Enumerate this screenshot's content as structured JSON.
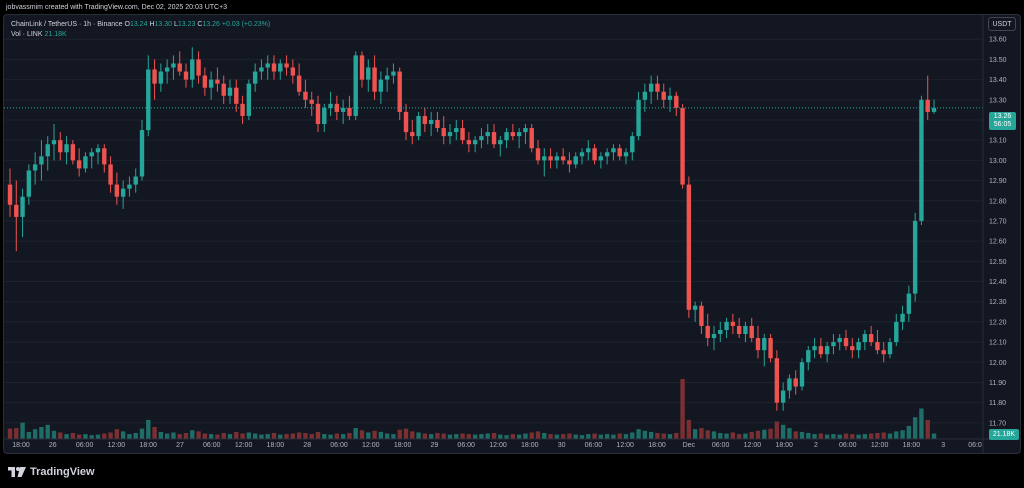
{
  "header": {
    "text": "jobvassmim created with TradingView.com, Dec 02, 2025 20:03 UTC+3"
  },
  "legend": {
    "symbol": "ChainLink / TetherUS · 1h · Binance",
    "open_label": "O",
    "open": "13.24",
    "high_label": "H",
    "high": "13.30",
    "low_label": "L",
    "low": "13.23",
    "close_label": "C",
    "close": "13.26",
    "change": "+0.03 (+0.23%)",
    "vol_label": "Vol · LINK",
    "vol_value": "21.18K"
  },
  "currency_button": "USDT",
  "last_price": {
    "price": "13.26",
    "countdown": "56:05"
  },
  "volume_readout": "21.18K",
  "footer": {
    "brand": "TradingView"
  },
  "colors": {
    "up": "#26a69a",
    "down": "#ef5350",
    "vol_up": "#1e6e67",
    "vol_down": "#7a3033",
    "grid": "#1e222d",
    "background": "#131722"
  },
  "chart_data": {
    "type": "candlestick",
    "symbol": "LINK/USDT",
    "timeframe": "1h",
    "ylim": [
      11.62,
      13.72
    ],
    "price_ticks": [
      "13.60",
      "13.50",
      "13.40",
      "13.30",
      "13.20",
      "13.10",
      "13.00",
      "12.90",
      "12.80",
      "12.70",
      "12.60",
      "12.50",
      "12.40",
      "12.30",
      "12.20",
      "12.10",
      "12.00",
      "11.90",
      "11.80",
      "11.70"
    ],
    "x_ticks": [
      "18:00",
      "26",
      "06:00",
      "12:00",
      "18:00",
      "27",
      "06:00",
      "12:00",
      "18:00",
      "28",
      "06:00",
      "12:00",
      "18:00",
      "29",
      "06:00",
      "12:00",
      "18:00",
      "30",
      "06:00",
      "12:00",
      "18:00",
      "Dec",
      "06:00",
      "12:00",
      "18:00",
      "2",
      "06:00",
      "12:00",
      "18:00",
      "3",
      "06:0"
    ],
    "candles": [
      {
        "o": 12.88,
        "h": 12.96,
        "l": 12.72,
        "c": 12.78,
        "v": 1.9
      },
      {
        "o": 12.78,
        "h": 12.9,
        "l": 12.55,
        "c": 12.72,
        "v": 2.0
      },
      {
        "o": 12.72,
        "h": 12.86,
        "l": 12.62,
        "c": 12.82,
        "v": 3.0
      },
      {
        "o": 12.82,
        "h": 12.98,
        "l": 12.78,
        "c": 12.95,
        "v": 1.3
      },
      {
        "o": 12.95,
        "h": 13.04,
        "l": 12.88,
        "c": 12.98,
        "v": 1.8
      },
      {
        "o": 12.98,
        "h": 13.1,
        "l": 12.9,
        "c": 13.02,
        "v": 2.2
      },
      {
        "o": 13.02,
        "h": 13.12,
        "l": 12.95,
        "c": 13.08,
        "v": 2.6
      },
      {
        "o": 13.08,
        "h": 13.18,
        "l": 13.0,
        "c": 13.1,
        "v": 1.5
      },
      {
        "o": 13.1,
        "h": 13.14,
        "l": 13.0,
        "c": 13.04,
        "v": 1.2
      },
      {
        "o": 13.04,
        "h": 13.12,
        "l": 12.98,
        "c": 13.08,
        "v": 0.9
      },
      {
        "o": 13.08,
        "h": 13.1,
        "l": 12.98,
        "c": 13.0,
        "v": 1.1
      },
      {
        "o": 13.0,
        "h": 13.06,
        "l": 12.92,
        "c": 12.96,
        "v": 0.8
      },
      {
        "o": 12.96,
        "h": 13.04,
        "l": 12.94,
        "c": 13.02,
        "v": 0.9
      },
      {
        "o": 13.02,
        "h": 13.06,
        "l": 12.96,
        "c": 13.04,
        "v": 0.7
      },
      {
        "o": 13.04,
        "h": 13.08,
        "l": 12.98,
        "c": 13.06,
        "v": 0.8
      },
      {
        "o": 13.06,
        "h": 13.08,
        "l": 12.94,
        "c": 12.98,
        "v": 1.0
      },
      {
        "o": 12.98,
        "h": 13.02,
        "l": 12.84,
        "c": 12.88,
        "v": 1.2
      },
      {
        "o": 12.88,
        "h": 12.94,
        "l": 12.78,
        "c": 12.82,
        "v": 1.8
      },
      {
        "o": 12.82,
        "h": 12.9,
        "l": 12.76,
        "c": 12.86,
        "v": 1.4
      },
      {
        "o": 12.86,
        "h": 12.92,
        "l": 12.82,
        "c": 12.88,
        "v": 0.9
      },
      {
        "o": 12.88,
        "h": 12.96,
        "l": 12.84,
        "c": 12.92,
        "v": 1.1
      },
      {
        "o": 12.92,
        "h": 13.2,
        "l": 12.9,
        "c": 13.15,
        "v": 1.9
      },
      {
        "o": 13.15,
        "h": 13.52,
        "l": 13.12,
        "c": 13.45,
        "v": 3.5
      },
      {
        "o": 13.45,
        "h": 13.5,
        "l": 13.3,
        "c": 13.38,
        "v": 2.2
      },
      {
        "o": 13.38,
        "h": 13.48,
        "l": 13.34,
        "c": 13.44,
        "v": 1.3
      },
      {
        "o": 13.44,
        "h": 13.5,
        "l": 13.38,
        "c": 13.46,
        "v": 1.0
      },
      {
        "o": 13.46,
        "h": 13.52,
        "l": 13.4,
        "c": 13.48,
        "v": 1.2
      },
      {
        "o": 13.48,
        "h": 13.54,
        "l": 13.42,
        "c": 13.44,
        "v": 0.9
      },
      {
        "o": 13.44,
        "h": 13.48,
        "l": 13.36,
        "c": 13.4,
        "v": 1.1
      },
      {
        "o": 13.4,
        "h": 13.56,
        "l": 13.36,
        "c": 13.5,
        "v": 1.6
      },
      {
        "o": 13.5,
        "h": 13.54,
        "l": 13.38,
        "c": 13.42,
        "v": 1.4
      },
      {
        "o": 13.42,
        "h": 13.46,
        "l": 13.32,
        "c": 13.36,
        "v": 1.0
      },
      {
        "o": 13.36,
        "h": 13.44,
        "l": 13.3,
        "c": 13.4,
        "v": 0.9
      },
      {
        "o": 13.4,
        "h": 13.46,
        "l": 13.34,
        "c": 13.38,
        "v": 0.8
      },
      {
        "o": 13.38,
        "h": 13.42,
        "l": 13.28,
        "c": 13.32,
        "v": 1.1
      },
      {
        "o": 13.32,
        "h": 13.4,
        "l": 13.28,
        "c": 13.36,
        "v": 0.9
      },
      {
        "o": 13.36,
        "h": 13.4,
        "l": 13.24,
        "c": 13.28,
        "v": 1.3
      },
      {
        "o": 13.28,
        "h": 13.32,
        "l": 13.18,
        "c": 13.22,
        "v": 1.0
      },
      {
        "o": 13.22,
        "h": 13.4,
        "l": 13.2,
        "c": 13.38,
        "v": 1.2
      },
      {
        "o": 13.38,
        "h": 13.48,
        "l": 13.34,
        "c": 13.44,
        "v": 1.0
      },
      {
        "o": 13.44,
        "h": 13.5,
        "l": 13.4,
        "c": 13.46,
        "v": 0.8
      },
      {
        "o": 13.46,
        "h": 13.52,
        "l": 13.4,
        "c": 13.48,
        "v": 0.9
      },
      {
        "o": 13.48,
        "h": 13.52,
        "l": 13.4,
        "c": 13.44,
        "v": 1.1
      },
      {
        "o": 13.44,
        "h": 13.5,
        "l": 13.4,
        "c": 13.48,
        "v": 0.8
      },
      {
        "o": 13.48,
        "h": 13.52,
        "l": 13.42,
        "c": 13.46,
        "v": 0.9
      },
      {
        "o": 13.46,
        "h": 13.5,
        "l": 13.38,
        "c": 13.42,
        "v": 1.0
      },
      {
        "o": 13.42,
        "h": 13.48,
        "l": 13.32,
        "c": 13.34,
        "v": 1.2
      },
      {
        "o": 13.34,
        "h": 13.4,
        "l": 13.26,
        "c": 13.3,
        "v": 1.1
      },
      {
        "o": 13.3,
        "h": 13.34,
        "l": 13.22,
        "c": 13.28,
        "v": 0.9
      },
      {
        "o": 13.28,
        "h": 13.32,
        "l": 13.14,
        "c": 13.18,
        "v": 1.3
      },
      {
        "o": 13.18,
        "h": 13.28,
        "l": 13.14,
        "c": 13.26,
        "v": 0.9
      },
      {
        "o": 13.26,
        "h": 13.34,
        "l": 13.22,
        "c": 13.28,
        "v": 0.8
      },
      {
        "o": 13.28,
        "h": 13.32,
        "l": 13.2,
        "c": 13.24,
        "v": 1.0
      },
      {
        "o": 13.24,
        "h": 13.3,
        "l": 13.18,
        "c": 13.26,
        "v": 0.9
      },
      {
        "o": 13.26,
        "h": 13.32,
        "l": 13.2,
        "c": 13.22,
        "v": 1.1
      },
      {
        "o": 13.22,
        "h": 13.54,
        "l": 13.2,
        "c": 13.52,
        "v": 2.0
      },
      {
        "o": 13.52,
        "h": 13.54,
        "l": 13.36,
        "c": 13.4,
        "v": 1.6
      },
      {
        "o": 13.4,
        "h": 13.5,
        "l": 13.34,
        "c": 13.46,
        "v": 1.2
      },
      {
        "o": 13.46,
        "h": 13.52,
        "l": 13.3,
        "c": 13.34,
        "v": 1.5
      },
      {
        "o": 13.34,
        "h": 13.44,
        "l": 13.28,
        "c": 13.4,
        "v": 1.3
      },
      {
        "o": 13.4,
        "h": 13.46,
        "l": 13.34,
        "c": 13.42,
        "v": 1.0
      },
      {
        "o": 13.42,
        "h": 13.48,
        "l": 13.38,
        "c": 13.44,
        "v": 0.9
      },
      {
        "o": 13.44,
        "h": 13.46,
        "l": 13.2,
        "c": 13.24,
        "v": 1.7
      },
      {
        "o": 13.24,
        "h": 13.28,
        "l": 13.1,
        "c": 13.14,
        "v": 1.9
      },
      {
        "o": 13.14,
        "h": 13.2,
        "l": 13.08,
        "c": 13.12,
        "v": 1.4
      },
      {
        "o": 13.12,
        "h": 13.24,
        "l": 13.1,
        "c": 13.22,
        "v": 1.2
      },
      {
        "o": 13.22,
        "h": 13.26,
        "l": 13.14,
        "c": 13.18,
        "v": 1.0
      },
      {
        "o": 13.18,
        "h": 13.24,
        "l": 13.12,
        "c": 13.2,
        "v": 0.9
      },
      {
        "o": 13.2,
        "h": 13.24,
        "l": 13.14,
        "c": 13.16,
        "v": 1.1
      },
      {
        "o": 13.16,
        "h": 13.22,
        "l": 13.08,
        "c": 13.12,
        "v": 1.0
      },
      {
        "o": 13.12,
        "h": 13.18,
        "l": 13.08,
        "c": 13.14,
        "v": 0.8
      },
      {
        "o": 13.14,
        "h": 13.2,
        "l": 13.1,
        "c": 13.16,
        "v": 0.9
      },
      {
        "o": 13.16,
        "h": 13.2,
        "l": 13.08,
        "c": 13.1,
        "v": 1.0
      },
      {
        "o": 13.1,
        "h": 13.14,
        "l": 13.04,
        "c": 13.08,
        "v": 0.9
      },
      {
        "o": 13.08,
        "h": 13.12,
        "l": 13.04,
        "c": 13.1,
        "v": 0.8
      },
      {
        "o": 13.1,
        "h": 13.16,
        "l": 13.06,
        "c": 13.12,
        "v": 0.9
      },
      {
        "o": 13.12,
        "h": 13.18,
        "l": 13.08,
        "c": 13.14,
        "v": 1.0
      },
      {
        "o": 13.14,
        "h": 13.18,
        "l": 13.06,
        "c": 13.08,
        "v": 1.1
      },
      {
        "o": 13.08,
        "h": 13.12,
        "l": 13.02,
        "c": 13.1,
        "v": 0.8
      },
      {
        "o": 13.1,
        "h": 13.16,
        "l": 13.06,
        "c": 13.14,
        "v": 0.7
      },
      {
        "o": 13.14,
        "h": 13.18,
        "l": 13.1,
        "c": 13.12,
        "v": 0.9
      },
      {
        "o": 13.12,
        "h": 13.16,
        "l": 13.06,
        "c": 13.14,
        "v": 0.8
      },
      {
        "o": 13.14,
        "h": 13.18,
        "l": 13.08,
        "c": 13.16,
        "v": 1.0
      },
      {
        "o": 13.16,
        "h": 13.18,
        "l": 13.04,
        "c": 13.06,
        "v": 1.2
      },
      {
        "o": 13.06,
        "h": 13.1,
        "l": 12.98,
        "c": 13.0,
        "v": 1.4
      },
      {
        "o": 13.0,
        "h": 13.06,
        "l": 12.92,
        "c": 13.02,
        "v": 1.1
      },
      {
        "o": 13.02,
        "h": 13.06,
        "l": 12.96,
        "c": 13.0,
        "v": 0.9
      },
      {
        "o": 13.0,
        "h": 13.04,
        "l": 12.96,
        "c": 13.02,
        "v": 0.8
      },
      {
        "o": 13.02,
        "h": 13.06,
        "l": 12.98,
        "c": 13.0,
        "v": 0.9
      },
      {
        "o": 13.0,
        "h": 13.04,
        "l": 12.94,
        "c": 12.98,
        "v": 1.0
      },
      {
        "o": 12.98,
        "h": 13.04,
        "l": 12.96,
        "c": 13.02,
        "v": 0.8
      },
      {
        "o": 13.02,
        "h": 13.06,
        "l": 12.98,
        "c": 13.04,
        "v": 0.7
      },
      {
        "o": 13.04,
        "h": 13.1,
        "l": 13.0,
        "c": 13.06,
        "v": 0.9
      },
      {
        "o": 13.06,
        "h": 13.08,
        "l": 12.98,
        "c": 13.0,
        "v": 1.0
      },
      {
        "o": 13.0,
        "h": 13.04,
        "l": 12.96,
        "c": 13.02,
        "v": 0.8
      },
      {
        "o": 13.02,
        "h": 13.06,
        "l": 12.98,
        "c": 13.04,
        "v": 0.9
      },
      {
        "o": 13.04,
        "h": 13.08,
        "l": 13.0,
        "c": 13.06,
        "v": 0.8
      },
      {
        "o": 13.06,
        "h": 13.08,
        "l": 13.0,
        "c": 13.02,
        "v": 1.0
      },
      {
        "o": 13.02,
        "h": 13.06,
        "l": 12.98,
        "c": 13.04,
        "v": 0.9
      },
      {
        "o": 13.04,
        "h": 13.14,
        "l": 13.0,
        "c": 13.12,
        "v": 1.2
      },
      {
        "o": 13.12,
        "h": 13.34,
        "l": 13.1,
        "c": 13.3,
        "v": 1.8
      },
      {
        "o": 13.3,
        "h": 13.38,
        "l": 13.24,
        "c": 13.34,
        "v": 1.5
      },
      {
        "o": 13.34,
        "h": 13.42,
        "l": 13.28,
        "c": 13.38,
        "v": 1.3
      },
      {
        "o": 13.38,
        "h": 13.42,
        "l": 13.3,
        "c": 13.34,
        "v": 1.1
      },
      {
        "o": 13.34,
        "h": 13.38,
        "l": 13.26,
        "c": 13.3,
        "v": 1.0
      },
      {
        "o": 13.3,
        "h": 13.36,
        "l": 13.24,
        "c": 13.32,
        "v": 0.9
      },
      {
        "o": 13.32,
        "h": 13.34,
        "l": 13.22,
        "c": 13.26,
        "v": 1.1
      },
      {
        "o": 13.26,
        "h": 13.28,
        "l": 12.86,
        "c": 12.88,
        "v": 11.0
      },
      {
        "o": 12.88,
        "h": 12.92,
        "l": 12.22,
        "c": 12.26,
        "v": 3.5
      },
      {
        "o": 12.26,
        "h": 12.3,
        "l": 12.2,
        "c": 12.28,
        "v": 1.8
      },
      {
        "o": 12.28,
        "h": 12.3,
        "l": 12.14,
        "c": 12.18,
        "v": 2.0
      },
      {
        "o": 12.18,
        "h": 12.24,
        "l": 12.08,
        "c": 12.12,
        "v": 1.6
      },
      {
        "o": 12.12,
        "h": 12.18,
        "l": 12.06,
        "c": 12.14,
        "v": 1.4
      },
      {
        "o": 12.14,
        "h": 12.2,
        "l": 12.1,
        "c": 12.16,
        "v": 1.1
      },
      {
        "o": 12.16,
        "h": 12.22,
        "l": 12.12,
        "c": 12.2,
        "v": 1.0
      },
      {
        "o": 12.2,
        "h": 12.24,
        "l": 12.14,
        "c": 12.18,
        "v": 1.2
      },
      {
        "o": 12.18,
        "h": 12.22,
        "l": 12.12,
        "c": 12.14,
        "v": 0.9
      },
      {
        "o": 12.14,
        "h": 12.2,
        "l": 12.1,
        "c": 12.18,
        "v": 1.0
      },
      {
        "o": 12.18,
        "h": 12.22,
        "l": 12.1,
        "c": 12.12,
        "v": 1.3
      },
      {
        "o": 12.12,
        "h": 12.18,
        "l": 12.02,
        "c": 12.06,
        "v": 1.5
      },
      {
        "o": 12.06,
        "h": 12.14,
        "l": 11.98,
        "c": 12.12,
        "v": 1.7
      },
      {
        "o": 12.12,
        "h": 12.14,
        "l": 12.0,
        "c": 12.02,
        "v": 1.9
      },
      {
        "o": 12.02,
        "h": 12.06,
        "l": 11.76,
        "c": 11.8,
        "v": 3.2
      },
      {
        "o": 11.8,
        "h": 11.9,
        "l": 11.76,
        "c": 11.86,
        "v": 2.6
      },
      {
        "o": 11.86,
        "h": 11.94,
        "l": 11.82,
        "c": 11.92,
        "v": 2.0
      },
      {
        "o": 11.92,
        "h": 11.96,
        "l": 11.84,
        "c": 11.88,
        "v": 1.4
      },
      {
        "o": 11.88,
        "h": 12.02,
        "l": 11.86,
        "c": 12.0,
        "v": 1.3
      },
      {
        "o": 12.0,
        "h": 12.08,
        "l": 11.96,
        "c": 12.06,
        "v": 1.1
      },
      {
        "o": 12.06,
        "h": 12.12,
        "l": 12.02,
        "c": 12.08,
        "v": 0.9
      },
      {
        "o": 12.08,
        "h": 12.12,
        "l": 12.02,
        "c": 12.04,
        "v": 1.0
      },
      {
        "o": 12.04,
        "h": 12.1,
        "l": 12.0,
        "c": 12.08,
        "v": 0.8
      },
      {
        "o": 12.08,
        "h": 12.14,
        "l": 12.04,
        "c": 12.1,
        "v": 0.9
      },
      {
        "o": 12.1,
        "h": 12.14,
        "l": 12.06,
        "c": 12.12,
        "v": 0.8
      },
      {
        "o": 12.12,
        "h": 12.16,
        "l": 12.06,
        "c": 12.08,
        "v": 1.0
      },
      {
        "o": 12.08,
        "h": 12.12,
        "l": 12.02,
        "c": 12.06,
        "v": 0.9
      },
      {
        "o": 12.06,
        "h": 12.12,
        "l": 12.02,
        "c": 12.1,
        "v": 0.8
      },
      {
        "o": 12.1,
        "h": 12.16,
        "l": 12.06,
        "c": 12.14,
        "v": 0.9
      },
      {
        "o": 12.14,
        "h": 12.18,
        "l": 12.08,
        "c": 12.1,
        "v": 1.0
      },
      {
        "o": 12.1,
        "h": 12.16,
        "l": 12.04,
        "c": 12.06,
        "v": 1.1
      },
      {
        "o": 12.06,
        "h": 12.1,
        "l": 12.0,
        "c": 12.04,
        "v": 1.2
      },
      {
        "o": 12.04,
        "h": 12.12,
        "l": 12.02,
        "c": 12.1,
        "v": 1.0
      },
      {
        "o": 12.1,
        "h": 12.24,
        "l": 12.08,
        "c": 12.2,
        "v": 1.4
      },
      {
        "o": 12.2,
        "h": 12.28,
        "l": 12.16,
        "c": 12.24,
        "v": 1.6
      },
      {
        "o": 12.24,
        "h": 12.38,
        "l": 12.2,
        "c": 12.34,
        "v": 2.4
      },
      {
        "o": 12.34,
        "h": 12.74,
        "l": 12.3,
        "c": 12.7,
        "v": 4.0
      },
      {
        "o": 12.7,
        "h": 13.32,
        "l": 12.68,
        "c": 13.3,
        "v": 5.6
      },
      {
        "o": 13.3,
        "h": 13.42,
        "l": 13.2,
        "c": 13.24,
        "v": 3.5
      },
      {
        "o": 13.24,
        "h": 13.3,
        "l": 13.23,
        "c": 13.26,
        "v": 1.0
      }
    ],
    "last_price": 13.26,
    "volume_last": "21.18K"
  }
}
